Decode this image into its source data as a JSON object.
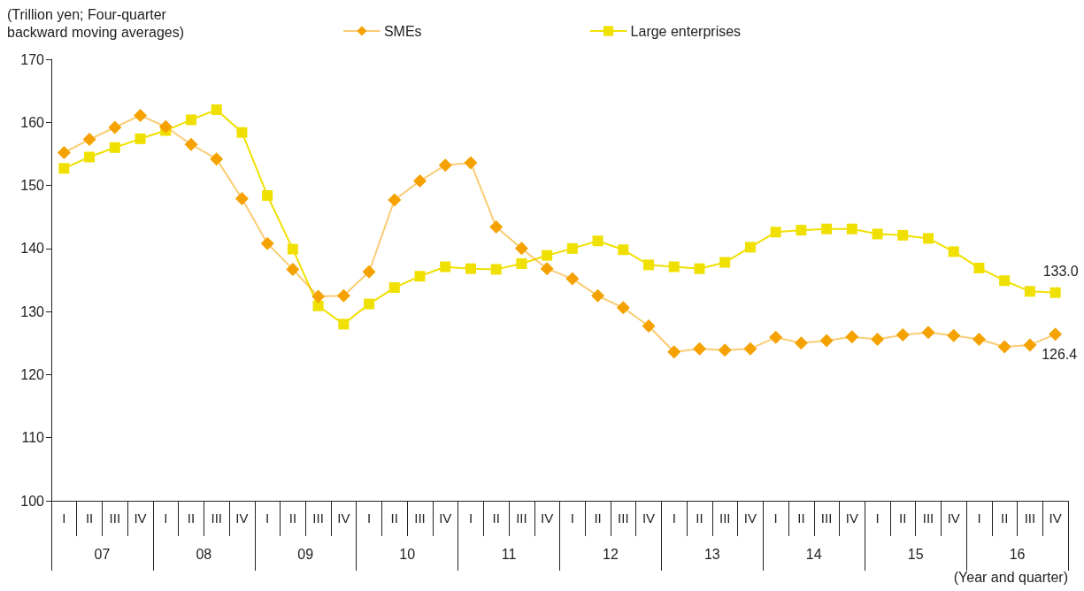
{
  "chart_data": {
    "type": "line",
    "ylabel": "(Trillion yen; Four-quarter backward moving averages)",
    "xlabel": "(Year and quarter)",
    "categories": [
      "I",
      "II",
      "III",
      "IV",
      "I",
      "II",
      "III",
      "IV",
      "I",
      "II",
      "III",
      "IV",
      "I",
      "II",
      "III",
      "IV",
      "I",
      "II",
      "III",
      "IV",
      "I",
      "II",
      "III",
      "IV",
      "I",
      "II",
      "III",
      "IV",
      "I",
      "II",
      "III",
      "IV",
      "I",
      "II",
      "III",
      "IV",
      "I",
      "II",
      "III",
      "IV"
    ],
    "annotations": [
      "07",
      "08",
      "09",
      "10",
      "11",
      "12",
      "13",
      "14",
      "15",
      "16"
    ],
    "ylim": [
      100,
      170
    ],
    "yticks": [
      100,
      110,
      120,
      130,
      140,
      150,
      160,
      170
    ],
    "grid": false,
    "legend": "top",
    "line_style": "solid",
    "series": [
      {
        "name": "SMEs",
        "color": "#f5a200",
        "marker": "diamond",
        "values": [
          155.2,
          157.3,
          159.2,
          161.1,
          159.3,
          156.5,
          154.2,
          147.9,
          140.8,
          136.7,
          132.4,
          132.5,
          136.3,
          147.7,
          150.7,
          153.2,
          153.6,
          143.4,
          140.0,
          136.8,
          135.2,
          132.5,
          130.6,
          127.7,
          123.6,
          124.1,
          123.9,
          124.1,
          125.9,
          125.0,
          125.4,
          126.0,
          125.6,
          126.3,
          126.7,
          126.2,
          125.6,
          124.4,
          124.7,
          126.4
        ],
        "value_labels": [
          null,
          null,
          null,
          null,
          null,
          null,
          null,
          null,
          null,
          null,
          null,
          null,
          null,
          null,
          null,
          null,
          null,
          null,
          null,
          null,
          null,
          null,
          null,
          null,
          null,
          null,
          null,
          null,
          null,
          null,
          null,
          null,
          null,
          null,
          null,
          null,
          null,
          null,
          null,
          "126.4"
        ]
      },
      {
        "name": "Large enterprises",
        "color": "#f0e000",
        "marker": "square",
        "values": [
          152.7,
          154.5,
          156.0,
          157.4,
          158.7,
          160.4,
          162.0,
          158.4,
          148.4,
          139.9,
          130.9,
          128.0,
          131.2,
          133.8,
          135.6,
          137.1,
          136.8,
          136.7,
          137.6,
          138.9,
          140.0,
          141.2,
          139.8,
          137.4,
          137.1,
          136.8,
          137.8,
          140.2,
          142.6,
          142.9,
          143.1,
          143.1,
          142.3,
          142.1,
          141.6,
          139.5,
          136.9,
          134.9,
          133.2,
          133.0
        ],
        "value_labels": [
          null,
          null,
          null,
          null,
          null,
          null,
          null,
          null,
          null,
          null,
          null,
          null,
          null,
          null,
          null,
          null,
          null,
          null,
          null,
          null,
          null,
          null,
          null,
          null,
          null,
          null,
          null,
          null,
          null,
          null,
          null,
          null,
          null,
          null,
          null,
          null,
          null,
          null,
          null,
          "133.0"
        ]
      }
    ]
  }
}
